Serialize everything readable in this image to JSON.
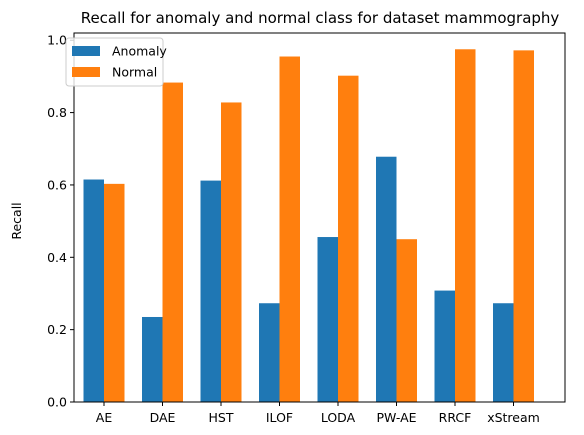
{
  "chart_data": {
    "type": "bar",
    "title": "Recall for anomaly and normal class for dataset mammography",
    "xlabel": "",
    "ylabel": "Recall",
    "categories": [
      "AE",
      "DAE",
      "HST",
      "ILOF",
      "LODA",
      "PW-AE",
      "RRCF",
      "xStream"
    ],
    "series": [
      {
        "name": "Anomaly",
        "color": "#1f77b4",
        "values": [
          0.615,
          0.235,
          0.612,
          0.273,
          0.456,
          0.678,
          0.308,
          0.273
        ]
      },
      {
        "name": "Normal",
        "color": "#ff7f0e",
        "values": [
          0.603,
          0.883,
          0.828,
          0.955,
          0.902,
          0.45,
          0.975,
          0.972
        ]
      }
    ],
    "ylim": [
      0,
      1.02
    ],
    "yticks": [
      "0.0",
      "0.2",
      "0.4",
      "0.6",
      "0.8",
      "1.0"
    ],
    "grid": false,
    "legend_position": "top-left"
  }
}
